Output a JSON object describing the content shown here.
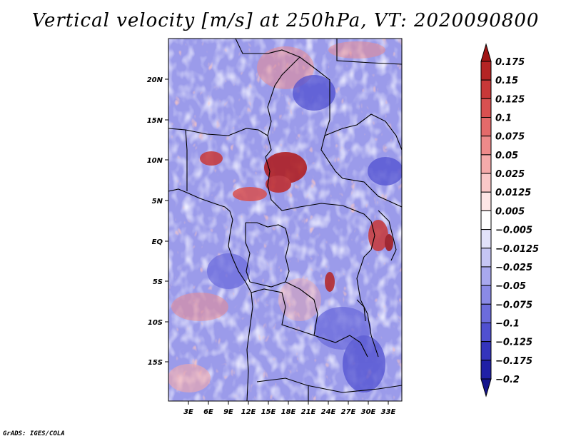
{
  "title": "Vertical velocity [m/s] at 250hPa, VT: 2020090800",
  "credit": "GrADS: IGES/COLA",
  "map": {
    "lon_range": [
      0,
      35
    ],
    "lat_range": [
      -20,
      25
    ],
    "y_ticks": [
      "20N",
      "15N",
      "10N",
      "5N",
      "EQ",
      "5S",
      "10S",
      "15S"
    ],
    "x_ticks": [
      "3E",
      "6E",
      "9E",
      "12E",
      "15E",
      "18E",
      "21E",
      "24E",
      "27E",
      "30E",
      "33E"
    ]
  },
  "colorbar": {
    "labels": [
      "0.175",
      "0.15",
      "0.125",
      "0.1",
      "0.075",
      "0.05",
      "0.025",
      "0.0125",
      "0.005",
      "−0.005",
      "−0.0125",
      "−0.025",
      "−0.05",
      "−0.075",
      "−0.1",
      "−0.125",
      "−0.175",
      "−0.2"
    ],
    "colors": [
      "#a01414",
      "#b42424",
      "#c83838",
      "#d85050",
      "#e46a6a",
      "#ee8a8a",
      "#f5aaaa",
      "#fac8c8",
      "#fde6e6",
      "#ffffff",
      "#e2e2fa",
      "#c6c6f4",
      "#a8a8ee",
      "#8a8ae6",
      "#6c6cdc",
      "#5050d0",
      "#3434bc",
      "#2020a6",
      "#14148c"
    ]
  }
}
